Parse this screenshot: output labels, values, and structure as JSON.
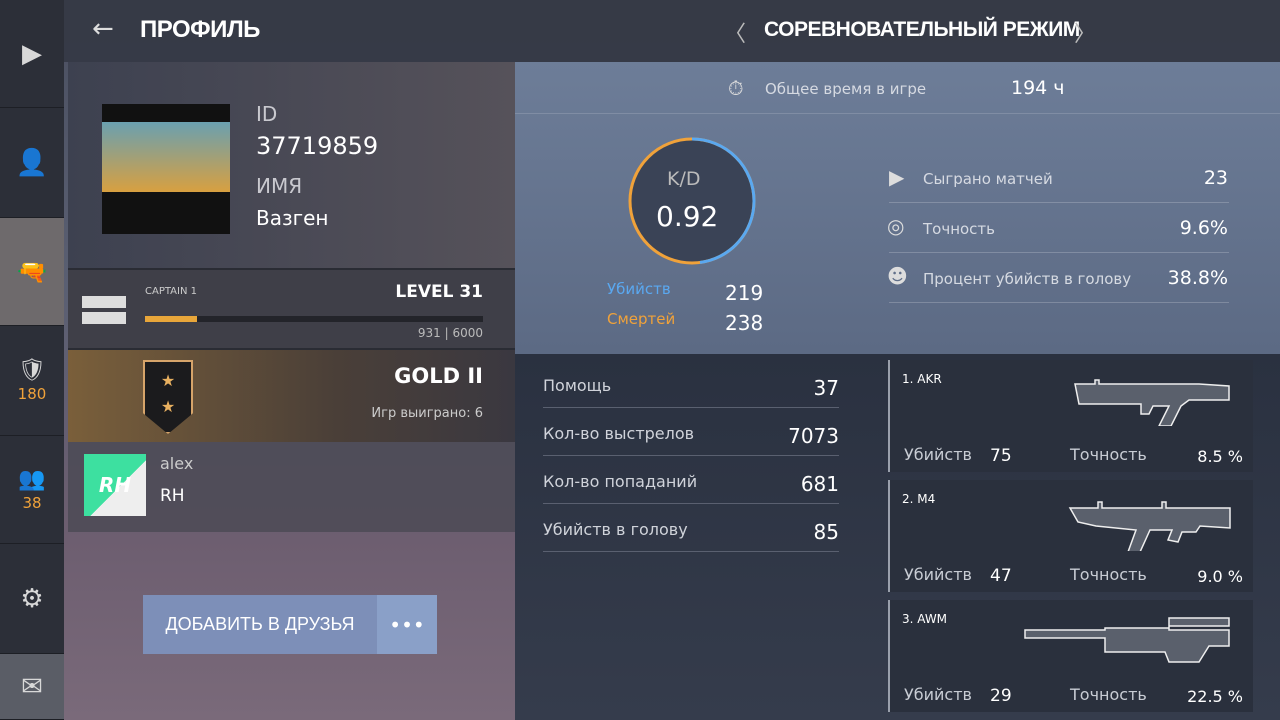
{
  "sidebar": {
    "items": [
      {
        "icon": "play-icon"
      },
      {
        "icon": "user-icon"
      },
      {
        "icon": "pistol-icon",
        "active": true
      },
      {
        "icon": "shield-icon",
        "count": "180"
      },
      {
        "icon": "group-icon",
        "count": "38"
      },
      {
        "icon": "gear-icon"
      },
      {
        "icon": "mail-icon"
      }
    ]
  },
  "header": {
    "title": "ПРОФИЛЬ",
    "mode": "СОРЕВНОВАТЕЛЬНЫЙ РЕЖИМ"
  },
  "profile": {
    "id_label": "ID",
    "id": "37719859",
    "name_label": "ИМЯ",
    "name": "Вазген"
  },
  "level": {
    "rank": "CAPTAIN 1",
    "level": "LEVEL 31",
    "xp": "931 | 6000",
    "progress": 0.155
  },
  "competitive": {
    "rank": "GOLD II",
    "wins": "Игр выиграно: 6"
  },
  "clan": {
    "tag": "alex",
    "name": "RH",
    "logo": "RH"
  },
  "actions": {
    "add_friend": "ДОБАВИТЬ В ДРУЗЬЯ",
    "more": "•••"
  },
  "stats": {
    "time_label": "Общее время в игре",
    "time": "194 ч",
    "kd_label": "K/D",
    "kd": "0.92",
    "kills_label": "Убийств",
    "kills": "219",
    "deaths_label": "Смертей",
    "deaths": "238",
    "matches_label": "Сыграно матчей",
    "matches": "23",
    "accuracy_label": "Точность",
    "accuracy": "9.6%",
    "hs_label": "Процент убийств в голову",
    "hs": "38.8%",
    "rows": [
      {
        "label": "Помощь",
        "value": "37"
      },
      {
        "label": "Кол-во выстрелов",
        "value": "7073"
      },
      {
        "label": "Кол-во попаданий",
        "value": "681"
      },
      {
        "label": "Убийств в голову",
        "value": "85"
      }
    ]
  },
  "weapons": [
    {
      "name": "1. AKR",
      "kills_label": "Убийств",
      "kills": "75",
      "acc_label": "Точность",
      "acc": "8.5 %"
    },
    {
      "name": "2. M4",
      "kills_label": "Убийств",
      "kills": "47",
      "acc_label": "Точность",
      "acc": "9.0 %"
    },
    {
      "name": "3. AWM",
      "kills_label": "Убийств",
      "kills": "29",
      "acc_label": "Точность",
      "acc": "22.5 %"
    }
  ],
  "colors": {
    "kills": "#5aa8f0",
    "deaths": "#f0a23a",
    "xp_bar": "#e8a63a"
  }
}
